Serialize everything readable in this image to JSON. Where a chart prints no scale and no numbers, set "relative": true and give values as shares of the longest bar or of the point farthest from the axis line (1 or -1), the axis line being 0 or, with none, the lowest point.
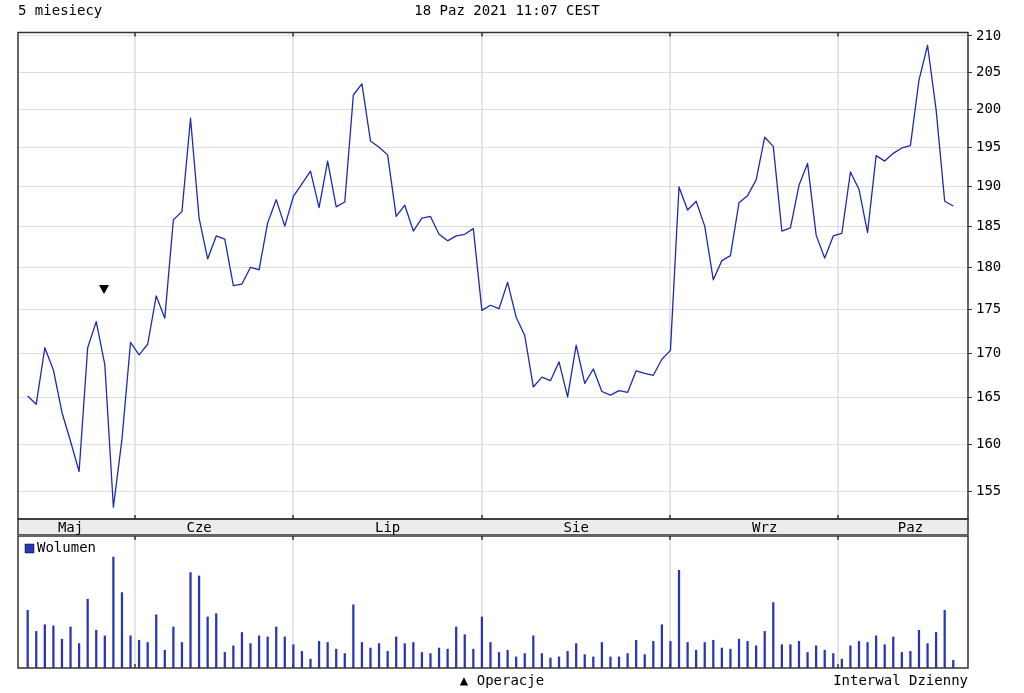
{
  "chart_data": [
    {
      "type": "line",
      "title": "5 miesiecy",
      "subtitle": "18 Paz 2021 11:07 CEST",
      "categories": [
        null,
        null,
        null,
        null,
        null,
        "Maj",
        null,
        null,
        null,
        null,
        null,
        null,
        null,
        null,
        null,
        null,
        null,
        null,
        null,
        null,
        "Cze",
        null,
        null,
        null,
        null,
        null,
        null,
        null,
        null,
        null,
        null,
        null,
        null,
        null,
        null,
        null,
        null,
        null,
        null,
        null,
        null,
        null,
        "Lip",
        null,
        null,
        null,
        null,
        null,
        null,
        null,
        null,
        null,
        null,
        null,
        null,
        null,
        null,
        null,
        null,
        null,
        null,
        null,
        null,
        null,
        "Sie",
        null,
        null,
        null,
        null,
        null,
        null,
        null,
        null,
        null,
        null,
        null,
        null,
        null,
        null,
        null,
        null,
        null,
        null,
        null,
        null,
        null,
        "Wrz",
        null,
        null,
        null,
        null,
        null,
        null,
        null,
        null,
        null,
        null,
        null,
        null,
        null,
        null,
        null,
        null,
        "Paz",
        null,
        null,
        null,
        null,
        null
      ],
      "series": [
        {
          "color": "#1c2bb0",
          "values": [
            165.2,
            164.3,
            170.6,
            168.1,
            163.4,
            160.3,
            157.1,
            170.6,
            173.6,
            168.7,
            153.4,
            160.5,
            171.2,
            169.8,
            171.0,
            176.6,
            174.0,
            185.8,
            186.8,
            198.8,
            186.0,
            181.0,
            183.8,
            183.4,
            177.8,
            178.0,
            180.0,
            179.7,
            185.4,
            188.3,
            185.0,
            188.7,
            190.3,
            191.9,
            187.3,
            193.2,
            187.4,
            188.0,
            201.9,
            203.4,
            195.8,
            195.0,
            194.0,
            186.2,
            187.6,
            184.4,
            186.0,
            186.2,
            184.0,
            183.2,
            183.8,
            184.0,
            184.7,
            174.9,
            175.5,
            175.1,
            178.2,
            174.1,
            172.0,
            166.2,
            167.3,
            166.9,
            169.0,
            165.1,
            170.9,
            166.6,
            168.2,
            165.7,
            165.3,
            165.8,
            165.6,
            168.0,
            167.7,
            167.5,
            169.3,
            170.3,
            189.9,
            187.0,
            188.1,
            185.0,
            178.5,
            180.8,
            181.4,
            187.9,
            188.8,
            190.8,
            196.3,
            195.1,
            184.4,
            184.8,
            190.1,
            192.9,
            183.9,
            181.1,
            183.8,
            184.1,
            191.8,
            189.6,
            184.2,
            193.9,
            193.2,
            194.2,
            194.9,
            195.2,
            203.9,
            208.7,
            199.9,
            188.1,
            187.5
          ]
        }
      ],
      "log": true,
      "ylim": [
        152.2,
        210.5
      ],
      "yticks": [
        155,
        160,
        165,
        170,
        175,
        180,
        185,
        190,
        195,
        200,
        205,
        210
      ],
      "grid": true
    },
    {
      "type": "bar",
      "relative": true,
      "tick_labels": false,
      "grid": "x",
      "legend": "top left",
      "categories": [
        null,
        null,
        null,
        null,
        null,
        null,
        null,
        null,
        null,
        null,
        null,
        null,
        null,
        null,
        null,
        null,
        null,
        null,
        null,
        null,
        null,
        null,
        null,
        null,
        null,
        null,
        null,
        null,
        null,
        null,
        null,
        null,
        null,
        null,
        null,
        null,
        null,
        null,
        null,
        null,
        null,
        null,
        null,
        null,
        null,
        null,
        null,
        null,
        null,
        null,
        null,
        null,
        null,
        null,
        null,
        null,
        null,
        null,
        null,
        null,
        null,
        null,
        null,
        null,
        null,
        null,
        null,
        null,
        null,
        null,
        null,
        null,
        null,
        null,
        null,
        null,
        null,
        null,
        null,
        null,
        null,
        null,
        null,
        null,
        null,
        null,
        null,
        null,
        null,
        null,
        null,
        null,
        null,
        null,
        null,
        null,
        null,
        null,
        null,
        null,
        null,
        null,
        null,
        null,
        null,
        null,
        null,
        null,
        null
      ],
      "series": [
        {
          "name": "Wolumen",
          "color": "#2a35b5",
          "values": [
            0.52,
            0.33,
            0.39,
            0.38,
            0.26,
            0.37,
            0.22,
            0.62,
            0.34,
            0.29,
            1,
            0.68,
            0.29,
            0.25,
            0.23,
            0.48,
            0.16,
            0.37,
            0.23,
            0.86,
            0.83,
            0.46,
            0.49,
            0.14,
            0.2,
            0.32,
            0.22,
            0.29,
            0.28,
            0.37,
            0.28,
            0.21,
            0.15,
            0.08,
            0.24,
            0.23,
            0.17,
            0.13,
            0.57,
            0.23,
            0.18,
            0.22,
            0.15,
            0.28,
            0.22,
            0.23,
            0.14,
            0.13,
            0.18,
            0.17,
            0.37,
            0.3,
            0.17,
            0.46,
            0.23,
            0.14,
            0.16,
            0.1,
            0.13,
            0.29,
            0.13,
            0.09,
            0.1,
            0.15,
            0.22,
            0.12,
            0.1,
            0.23,
            0.1,
            0.1,
            0.13,
            0.25,
            0.12,
            0.24,
            0.39,
            0.24,
            0.88,
            0.23,
            0.16,
            0.23,
            0.25,
            0.18,
            0.17,
            0.26,
            0.24,
            0.2,
            0.33,
            0.59,
            0.21,
            0.21,
            0.24,
            0.14,
            0.2,
            0.16,
            0.13,
            0.08,
            0.2,
            0.24,
            0.23,
            0.29,
            0.21,
            0.28,
            0.14,
            0.15,
            0.34,
            0.22,
            0.32,
            0.52,
            0.07
          ]
        }
      ],
      "annotations": [
        "▲ Operacje",
        "Interwal Dzienny"
      ]
    }
  ]
}
